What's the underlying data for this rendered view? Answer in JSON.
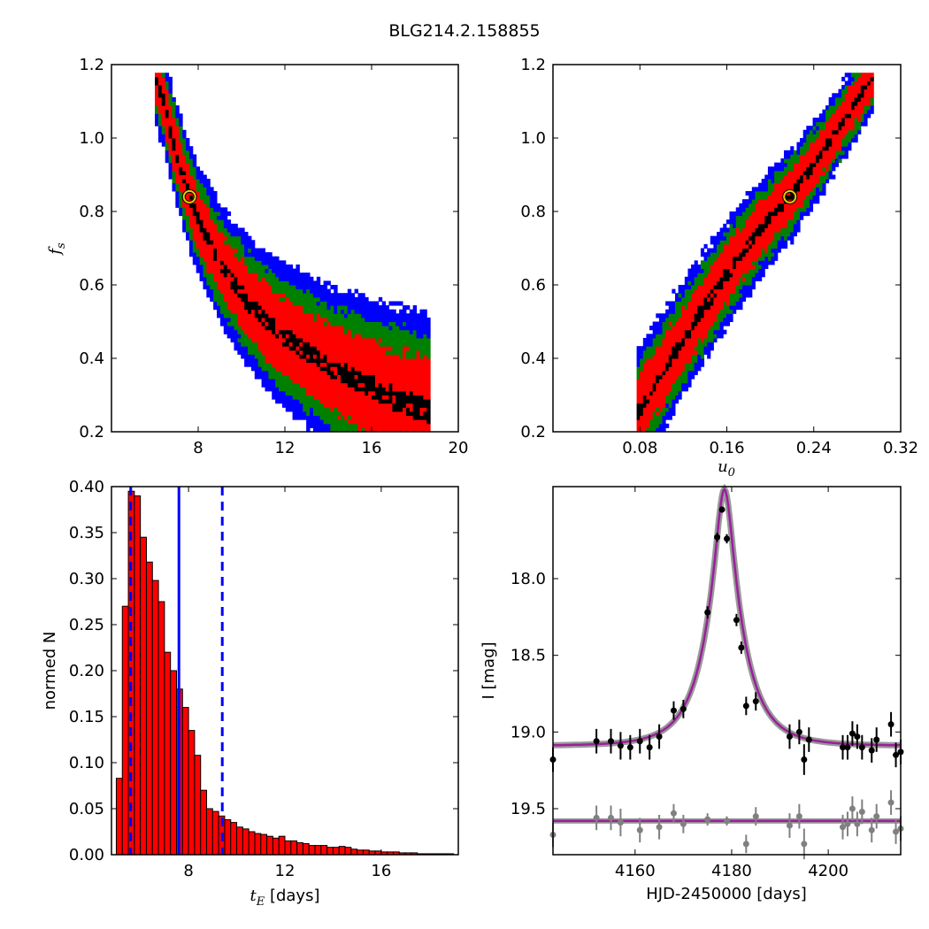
{
  "figure_title": "BLG214.2.158855",
  "chart_data": [
    {
      "type": "heatmap",
      "panel": "top-left",
      "xlabel": "",
      "ylabel": "f_s",
      "xlim": [
        4,
        20
      ],
      "ylim": [
        0.2,
        1.2
      ],
      "xticks": [
        "8",
        "12",
        "16",
        "20"
      ],
      "yticks": [
        "0.2",
        "0.4",
        "0.6",
        "0.8",
        "1.0",
        "1.2"
      ],
      "level_colors": {
        "outer": "#0000ff",
        "middle": "#008000",
        "inner": "#ff0000",
        "core": "#000000"
      },
      "ridge": [
        [
          6.0,
          1.17
        ],
        [
          6.4,
          1.1
        ],
        [
          6.8,
          1.0
        ],
        [
          7.2,
          0.92
        ],
        [
          7.6,
          0.84
        ],
        [
          8.0,
          0.78
        ],
        [
          8.5,
          0.72
        ],
        [
          9.0,
          0.66
        ],
        [
          9.6,
          0.61
        ],
        [
          10.2,
          0.56
        ],
        [
          11.0,
          0.51
        ],
        [
          12.0,
          0.46
        ],
        [
          13.0,
          0.42
        ],
        [
          14.0,
          0.38
        ],
        [
          15.0,
          0.35
        ],
        [
          16.0,
          0.32
        ],
        [
          17.0,
          0.29
        ],
        [
          18.0,
          0.27
        ],
        [
          18.7,
          0.255
        ]
      ],
      "best_fit": {
        "x": 7.6,
        "y": 0.84
      }
    },
    {
      "type": "heatmap",
      "panel": "top-right",
      "xlabel": "u_0",
      "ylabel": "",
      "xlim": [
        0.0,
        0.32
      ],
      "ylim": [
        0.2,
        1.2
      ],
      "xticks": [
        "0.08",
        "0.16",
        "0.24",
        "0.32"
      ],
      "yticks": [
        "0.2",
        "0.4",
        "0.6",
        "0.8",
        "1.0",
        "1.2"
      ],
      "ridge": [
        [
          0.077,
          0.25
        ],
        [
          0.1,
          0.36
        ],
        [
          0.13,
          0.5
        ],
        [
          0.16,
          0.63
        ],
        [
          0.19,
          0.75
        ],
        [
          0.22,
          0.85
        ],
        [
          0.25,
          0.97
        ],
        [
          0.27,
          1.06
        ],
        [
          0.29,
          1.15
        ],
        [
          0.295,
          1.17
        ]
      ],
      "best_fit": {
        "x": 0.218,
        "y": 0.84
      }
    },
    {
      "type": "bar",
      "panel": "bottom-left",
      "xlabel": "t_E [days]",
      "ylabel": "normed N",
      "xlim": [
        4.8,
        19.2
      ],
      "ylim": [
        0,
        0.4
      ],
      "xticks": [
        "8",
        "12",
        "16"
      ],
      "yticks": [
        "0.00",
        "0.05",
        "0.10",
        "0.15",
        "0.20",
        "0.25",
        "0.30",
        "0.35",
        "0.40"
      ],
      "bin_start": 5.0,
      "bin_width": 0.25,
      "values": [
        0.083,
        0.27,
        0.395,
        0.39,
        0.345,
        0.318,
        0.298,
        0.275,
        0.22,
        0.2,
        0.18,
        0.16,
        0.135,
        0.108,
        0.07,
        0.05,
        0.047,
        0.042,
        0.038,
        0.035,
        0.03,
        0.028,
        0.025,
        0.023,
        0.022,
        0.02,
        0.018,
        0.02,
        0.015,
        0.015,
        0.013,
        0.012,
        0.01,
        0.01,
        0.01,
        0.008,
        0.008,
        0.009,
        0.008,
        0.006,
        0.005,
        0.005,
        0.004,
        0.004,
        0.003,
        0.003,
        0.003,
        0.002,
        0.002,
        0.002,
        0.001,
        0.001,
        0.001,
        0.001,
        0.001,
        0.001
      ],
      "bar_color": "#ff0000",
      "median": 7.6,
      "interval": [
        5.6,
        9.4
      ],
      "line_color": "#0000ff"
    },
    {
      "type": "scatter",
      "panel": "bottom-right",
      "xlabel": "HJD-2450000 [days]",
      "ylabel": "I [mag]",
      "xlim": [
        4143,
        4215
      ],
      "ylim": [
        19.8,
        17.4
      ],
      "xticks": [
        "4160",
        "4180",
        "4200"
      ],
      "yticks": [
        "18.0",
        "18.5",
        "19.0",
        "19.5"
      ],
      "model": {
        "t0": 4178.5,
        "tE": 7.6,
        "u0": 0.218,
        "baseline": 19.09,
        "blend_baseline": 19.58,
        "color": "#9b1f9b",
        "band_color": "#808080"
      },
      "series": [
        {
          "color": "#000000",
          "points": [
            [
              4152,
              19.06,
              0.08
            ],
            [
              4155,
              19.06,
              0.08
            ],
            [
              4157,
              19.09,
              0.09
            ],
            [
              4159,
              19.1,
              0.08
            ],
            [
              4161,
              19.06,
              0.08
            ],
            [
              4163,
              19.1,
              0.08
            ],
            [
              4165,
              19.03,
              0.08
            ],
            [
              4168,
              18.86,
              0.06
            ],
            [
              4170,
              18.85,
              0.06
            ],
            [
              4175,
              18.22,
              0.04
            ],
            [
              4177,
              17.73,
              0.03
            ],
            [
              4178,
              17.55,
              0.02
            ],
            [
              4179,
              17.74,
              0.03
            ],
            [
              4181,
              18.27,
              0.04
            ],
            [
              4182,
              18.45,
              0.04
            ],
            [
              4183,
              18.83,
              0.06
            ],
            [
              4185,
              18.8,
              0.06
            ],
            [
              4192,
              19.03,
              0.08
            ],
            [
              4194,
              19.0,
              0.08
            ],
            [
              4195,
              19.18,
              0.1
            ],
            [
              4196,
              19.05,
              0.08
            ],
            [
              4203,
              19.1,
              0.08
            ],
            [
              4204,
              19.1,
              0.08
            ],
            [
              4205,
              19.01,
              0.08
            ],
            [
              4206,
              19.03,
              0.08
            ],
            [
              4207,
              19.1,
              0.08
            ],
            [
              4209,
              19.12,
              0.08
            ],
            [
              4210,
              19.05,
              0.08
            ],
            [
              4213,
              18.95,
              0.08
            ],
            [
              4214,
              19.15,
              0.08
            ],
            [
              4215,
              19.13,
              0.08
            ],
            [
              4143,
              19.18,
              0.08
            ]
          ]
        },
        {
          "color": "#808080",
          "points": [
            [
              4152,
              19.56,
              0.08
            ],
            [
              4155,
              19.56,
              0.08
            ],
            [
              4157,
              19.59,
              0.09
            ],
            [
              4161,
              19.64,
              0.08
            ],
            [
              4165,
              19.62,
              0.08
            ],
            [
              4168,
              19.53,
              0.06
            ],
            [
              4170,
              19.6,
              0.06
            ],
            [
              4175,
              19.57,
              0.04
            ],
            [
              4179,
              19.58,
              0.03
            ],
            [
              4183,
              19.73,
              0.06
            ],
            [
              4185,
              19.55,
              0.06
            ],
            [
              4192,
              19.61,
              0.08
            ],
            [
              4194,
              19.55,
              0.08
            ],
            [
              4195,
              19.73,
              0.1
            ],
            [
              4203,
              19.62,
              0.08
            ],
            [
              4204,
              19.6,
              0.08
            ],
            [
              4205,
              19.5,
              0.08
            ],
            [
              4206,
              19.6,
              0.08
            ],
            [
              4207,
              19.52,
              0.08
            ],
            [
              4209,
              19.64,
              0.08
            ],
            [
              4210,
              19.55,
              0.08
            ],
            [
              4213,
              19.46,
              0.08
            ],
            [
              4214,
              19.65,
              0.08
            ],
            [
              4215,
              19.63,
              0.08
            ],
            [
              4143,
              19.67,
              0.08
            ]
          ]
        }
      ]
    }
  ]
}
